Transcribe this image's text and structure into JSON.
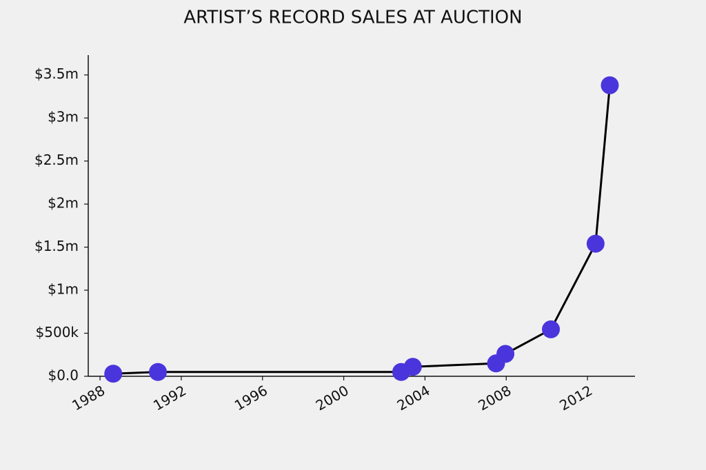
{
  "chart_data": {
    "type": "line",
    "title": "ARTIST’S RECORD SALES AT AUCTION",
    "x": [
      1988.65,
      1990.85,
      2002.83,
      2003.4,
      2007.5,
      2007.96,
      2010.2,
      2012.4,
      2013.1
    ],
    "series": [
      {
        "color": "#4a35dc",
        "line_color": "#000000",
        "values": [
          30000,
          50000,
          50000,
          110000,
          150000,
          260000,
          545000,
          1540000,
          3380000
        ]
      }
    ],
    "xlim": [
      1987.42,
      2014.34
    ],
    "xticks": [
      1988,
      1992,
      1996,
      2000,
      2004,
      2008,
      2012
    ],
    "ylim": [
      0,
      3730000
    ],
    "yticks": [
      {
        "value": 0,
        "label": "$0.0"
      },
      {
        "value": 500000,
        "label": "$500k"
      },
      {
        "value": 1000000,
        "label": "$1m"
      },
      {
        "value": 1500000,
        "label": "$1.5m"
      },
      {
        "value": 2000000,
        "label": "$2m"
      },
      {
        "value": 2500000,
        "label": "$2.5m"
      },
      {
        "value": 3000000,
        "label": "$3m"
      },
      {
        "value": 3500000,
        "label": "$3.5m"
      }
    ],
    "grid": false
  }
}
